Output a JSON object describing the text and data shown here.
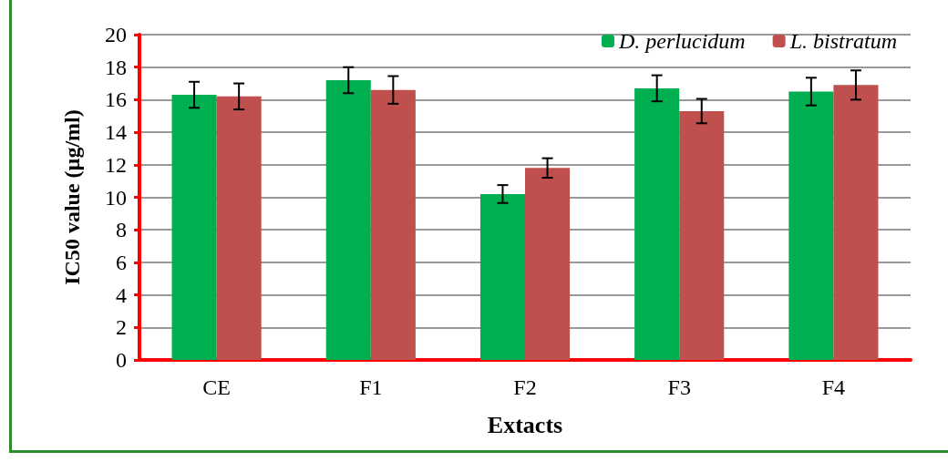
{
  "chart_data": {
    "type": "bar",
    "xlabel": "Extacts",
    "ylabel": "IC50 value (µg/ml)",
    "categories": [
      "CE",
      "F1",
      "F2",
      "F3",
      "F4"
    ],
    "series": [
      {
        "name": "D. perlucidum",
        "color": "#00b050",
        "values": [
          16.3,
          17.2,
          10.2,
          16.7,
          16.5
        ],
        "errors": [
          0.8,
          0.8,
          0.55,
          0.8,
          0.85
        ]
      },
      {
        "name": "L. bistratum",
        "color": "#c0504d",
        "values": [
          16.2,
          16.6,
          11.8,
          15.3,
          16.9
        ],
        "errors": [
          0.8,
          0.85,
          0.6,
          0.75,
          0.9
        ]
      }
    ],
    "ylim": [
      0,
      20
    ],
    "yticks": [
      0,
      2,
      4,
      6,
      8,
      10,
      12,
      14,
      16,
      18,
      20
    ],
    "grid": "y",
    "legend": "top right"
  }
}
